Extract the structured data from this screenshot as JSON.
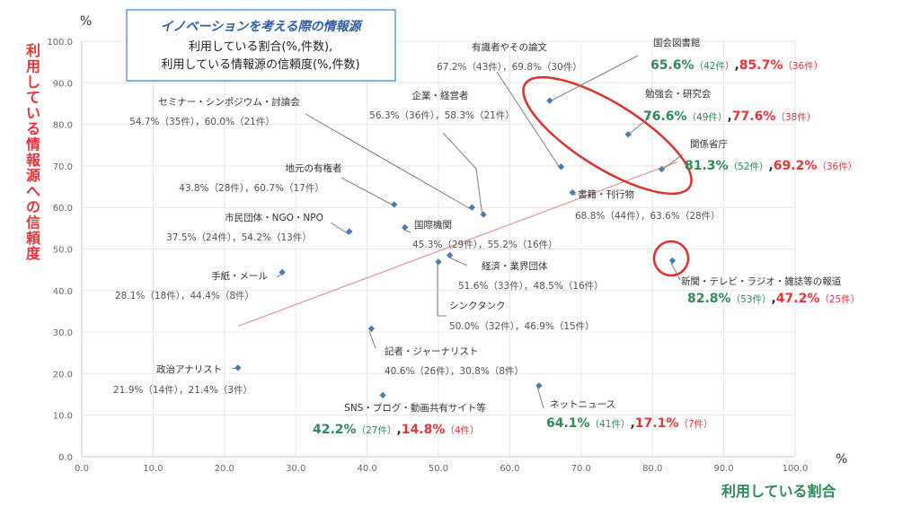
{
  "colors": {
    "axis_title": "#e8353a",
    "x_title": "#2e8b57",
    "green": "#2e8b57",
    "red": "#e8353a",
    "title_blue": "#2e5fa8",
    "point": "#4a7ab8"
  },
  "chart_data": {
    "type": "scatter",
    "title": "イノベーションを考える際の情報源",
    "subtitle_lines": [
      "利用している割合(%,件数),",
      "利用している情報源の信頼度(%,件数)"
    ],
    "xlabel": "利用している割合",
    "ylabel": "利用している情報源への信頼度",
    "x_unit": "%",
    "y_unit": "%",
    "xlim": [
      0,
      100
    ],
    "ylim": [
      0,
      100
    ],
    "x_ticks": [
      "0.0",
      "10.0",
      "20.0",
      "30.0",
      "40.0",
      "50.0",
      "60.0",
      "70.0",
      "80.0",
      "90.0",
      "100.0"
    ],
    "y_ticks": [
      "0.0",
      "10.0",
      "20.0",
      "30.0",
      "40.0",
      "50.0",
      "60.0",
      "70.0",
      "80.0",
      "90.0",
      "100.0"
    ],
    "grid": true,
    "trendline": {
      "from": [
        22,
        31.5
      ],
      "to": [
        83.5,
        71
      ]
    },
    "points": [
      {
        "name": "国会図書館",
        "x": 65.6,
        "y": 85.7,
        "stat_parts": [
          "65.6%",
          "（42件）",
          ",",
          "85.7%",
          "（36件）"
        ],
        "style": "highlight"
      },
      {
        "name": "勉強会・研究会",
        "x": 76.6,
        "y": 77.6,
        "stat_parts": [
          "76.6%",
          "（49件）",
          ",",
          "77.6%",
          "（38件）"
        ],
        "style": "highlight"
      },
      {
        "name": "関係省庁",
        "x": 81.3,
        "y": 69.2,
        "stat_parts": [
          "81.3%",
          "（52件）",
          ",",
          "69.2%",
          "（36件）"
        ],
        "style": "highlight"
      },
      {
        "name": "新聞・テレビ・ラジオ・雑誌等の報道",
        "x": 82.8,
        "y": 47.2,
        "stat_parts": [
          "82.8%",
          "（53件）",
          ",",
          "47.2%",
          "（25件）"
        ],
        "style": "highlight"
      },
      {
        "name": "SNS・ブログ・動画共有サイト等",
        "x": 42.2,
        "y": 14.8,
        "stat_parts": [
          "42.2%",
          "（27件）",
          ",",
          "14.8%",
          "（4件）"
        ],
        "style": "highlight"
      },
      {
        "name": "ネットニュース",
        "x": 64.1,
        "y": 17.1,
        "stat_parts": [
          "64.1%",
          "（41件）",
          ",",
          "17.1%",
          "（7件）"
        ],
        "style": "highlight"
      },
      {
        "name": "有識者やその論文",
        "x": 67.2,
        "y": 69.8,
        "stat": "67.2%（43件），69.8%（30件）",
        "style": "normal"
      },
      {
        "name": "企業・経営者",
        "x": 56.3,
        "y": 58.3,
        "stat": "56.3%（36件），58.3%（21件）",
        "style": "normal"
      },
      {
        "name": "セミナー・シンポジウム・討論会",
        "x": 54.7,
        "y": 60.0,
        "stat": "54.7%（35件），60.0%（21件）",
        "style": "normal"
      },
      {
        "name": "地元の有権者",
        "x": 43.8,
        "y": 60.7,
        "stat": "43.8%（28件），60.7%（17件）",
        "style": "normal"
      },
      {
        "name": "市民団体・NGO・NPO",
        "x": 37.5,
        "y": 54.2,
        "stat": "37.5%（24件），54.2%（13件）",
        "style": "normal"
      },
      {
        "name": "国際機関",
        "x": 45.3,
        "y": 55.2,
        "stat": "45.3%（29件），55.2%（16件）",
        "style": "normal"
      },
      {
        "name": "書籍・刊行物",
        "x": 68.8,
        "y": 63.6,
        "stat": "68.8%（44件），63.6%（28件）",
        "style": "normal"
      },
      {
        "name": "手紙・メール",
        "x": 28.1,
        "y": 44.4,
        "stat": "28.1%（18件），44.4%（8件）",
        "style": "normal"
      },
      {
        "name": "経済・業界団体",
        "x": 51.6,
        "y": 48.5,
        "stat": "51.6%（33件），48.5%（16件）",
        "style": "normal"
      },
      {
        "name": "シンクタンク",
        "x": 50.0,
        "y": 46.9,
        "stat": "50.0%（32件），46.9%（15件）",
        "style": "normal"
      },
      {
        "name": "記者・ジャーナリスト",
        "x": 40.6,
        "y": 30.8,
        "stat": "40.6%（26件），30.8%（8件）",
        "style": "normal"
      },
      {
        "name": "政治アナリスト",
        "x": 21.9,
        "y": 21.4,
        "stat": "21.9%（14件），21.4%（3件）",
        "style": "normal"
      }
    ]
  }
}
